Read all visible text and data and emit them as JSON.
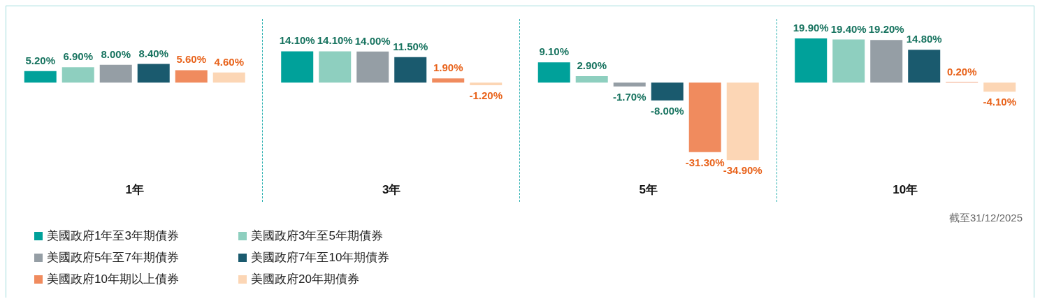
{
  "chart_data": {
    "type": "bar",
    "categories": [
      "1年",
      "3年",
      "5年",
      "10年"
    ],
    "series": [
      {
        "name": "美國政府1年至3年期債券",
        "color": "#00a19a",
        "values": [
          5.2,
          14.1,
          9.1,
          19.9
        ],
        "value_labels": [
          "5.20%",
          "14.10%",
          "9.10%",
          "19.90%"
        ]
      },
      {
        "name": "美國政府3年至5年期債券",
        "color": "#8ecfbf",
        "values": [
          6.9,
          14.1,
          2.9,
          19.4
        ],
        "value_labels": [
          "6.90%",
          "14.10%",
          "2.90%",
          "19.40%"
        ]
      },
      {
        "name": "美國政府5年至7年期債券",
        "color": "#959ea5",
        "values": [
          8.0,
          14.0,
          -1.7,
          19.2
        ],
        "value_labels": [
          "8.00%",
          "14.00%",
          "-1.70%",
          "19.20%"
        ]
      },
      {
        "name": "美國政府7年至10年期債券",
        "color": "#1a5a6e",
        "values": [
          8.4,
          11.5,
          -8.0,
          14.8
        ],
        "value_labels": [
          "8.40%",
          "11.50%",
          "-8.00%",
          "14.80%"
        ]
      },
      {
        "name": "美國政府10年期以上債券",
        "color": "#f08b5e",
        "values": [
          5.6,
          1.9,
          -31.3,
          0.2
        ],
        "value_labels": [
          "5.60%",
          "1.90%",
          "-31.30%",
          "0.20%"
        ]
      },
      {
        "name": "美國政府20年期債券",
        "color": "#fcd6b5",
        "values": [
          4.6,
          -1.2,
          -34.9,
          -4.1
        ],
        "value_labels": [
          "4.60%",
          "-1.20%",
          "-34.90%",
          "-4.10%"
        ]
      }
    ],
    "annotations": [
      "截至31/12/2025"
    ],
    "legend": "bottom left"
  }
}
